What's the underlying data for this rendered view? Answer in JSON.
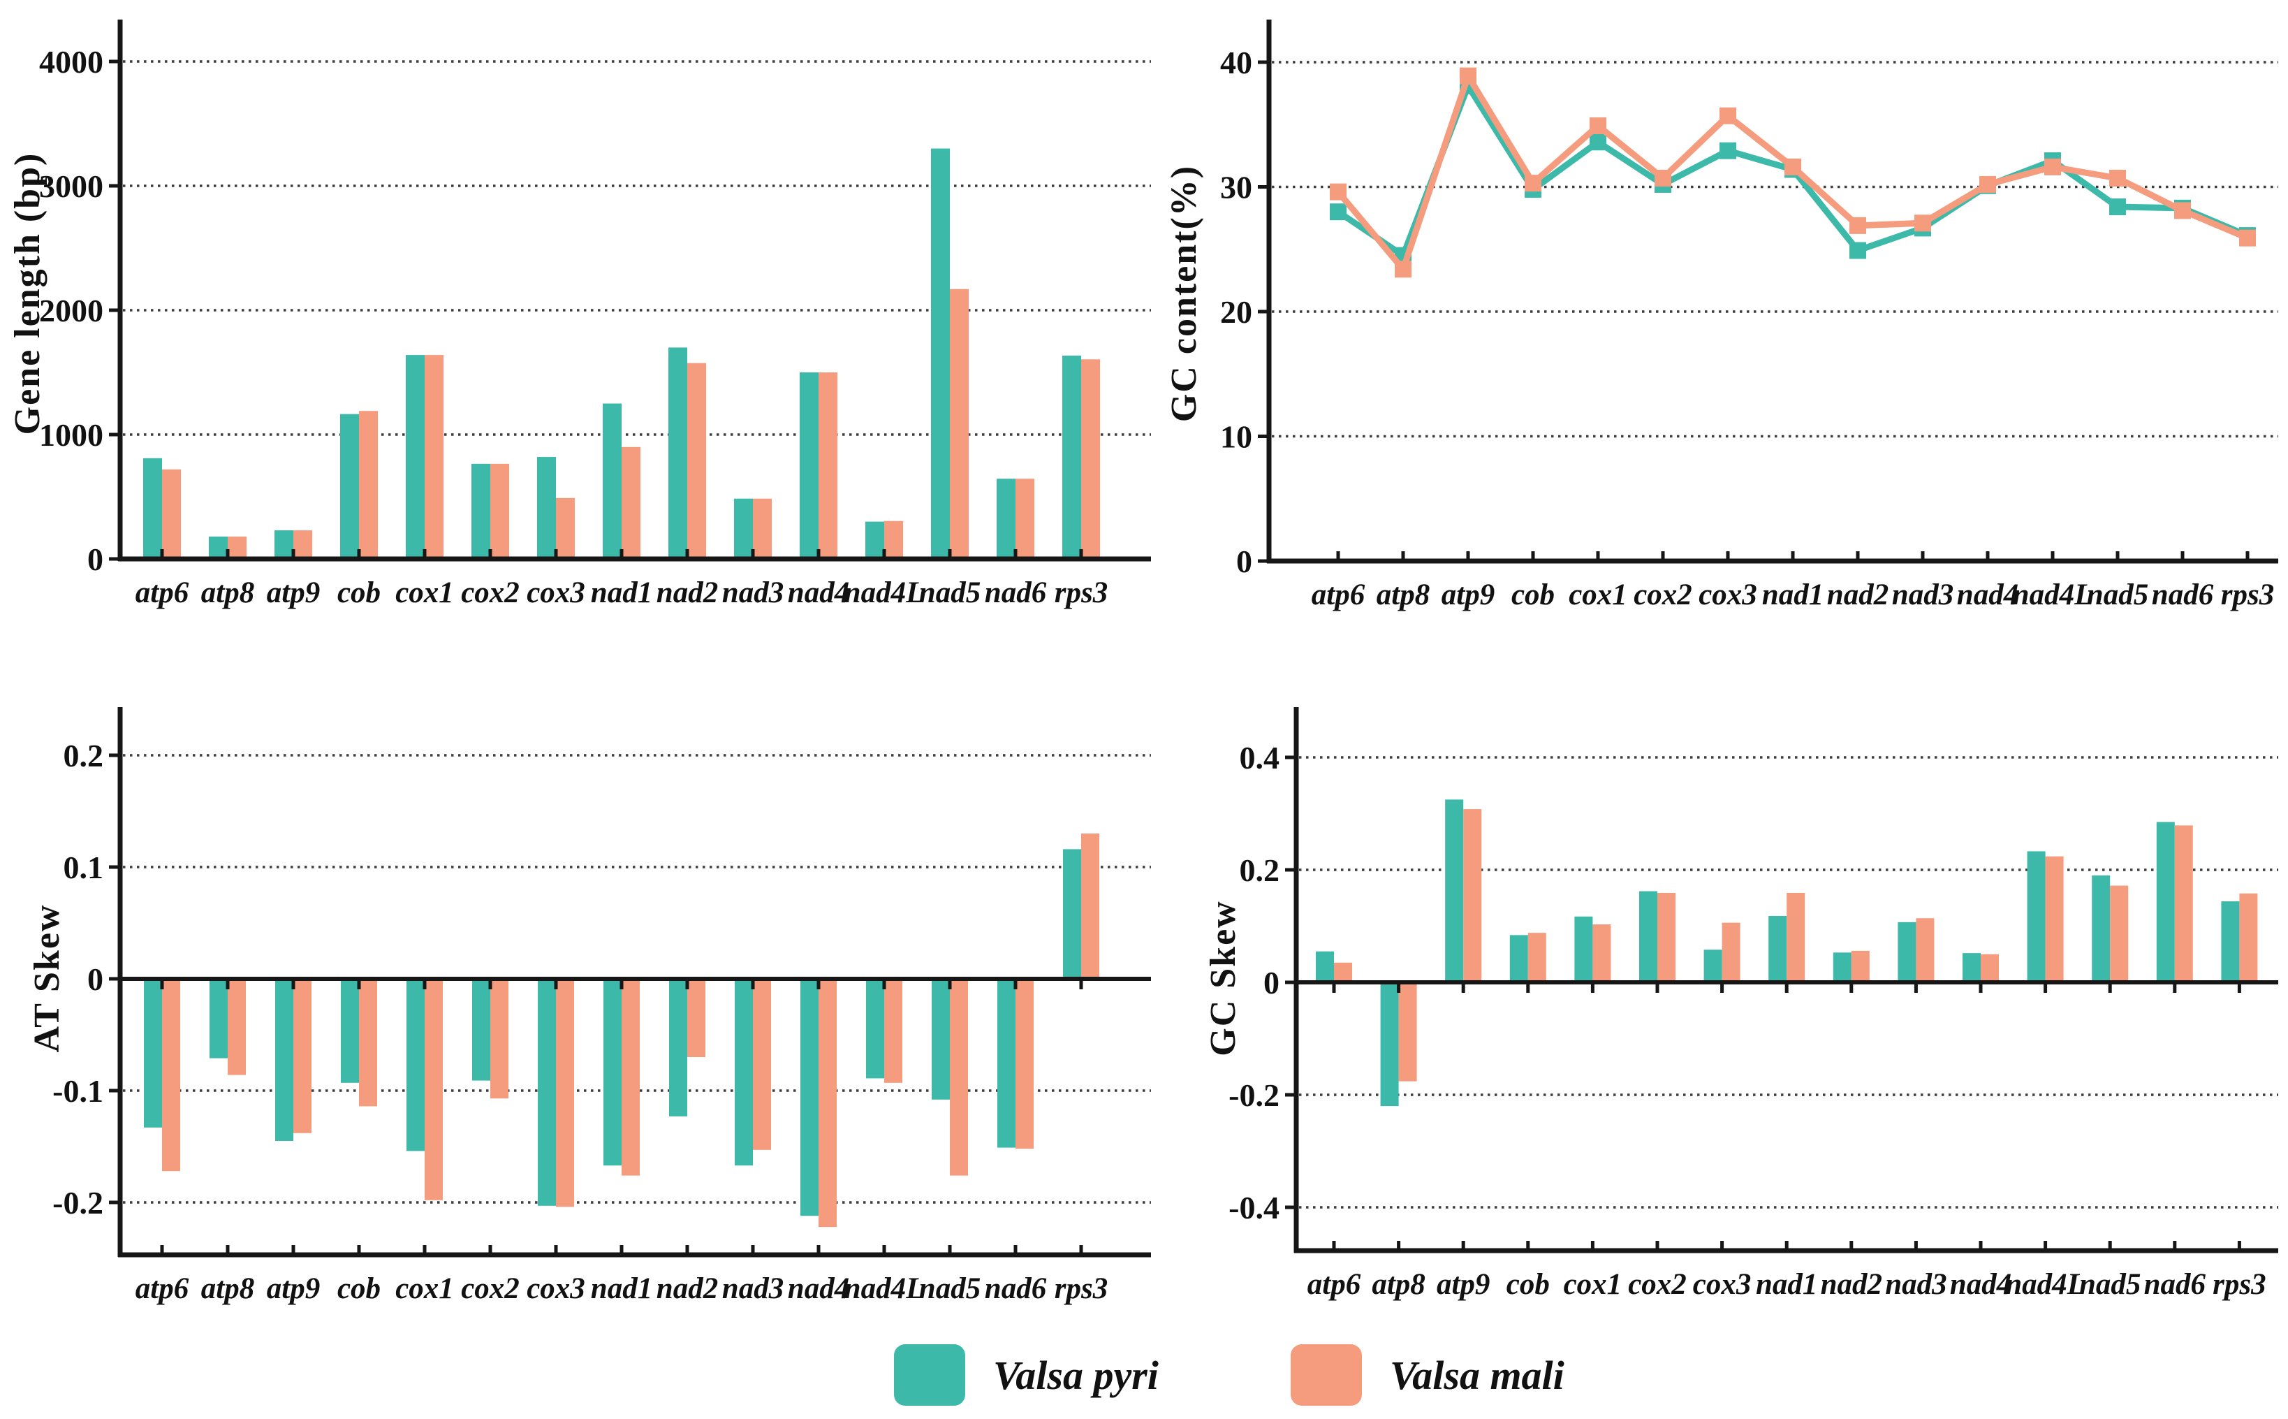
{
  "legend": {
    "items": [
      {
        "label": "Valsa pyri",
        "color": "#3CB9A9"
      },
      {
        "label": "Valsa mali",
        "color": "#F59C7E"
      }
    ]
  },
  "categories": [
    "atp6",
    "atp8",
    "atp9",
    "cob",
    "cox1",
    "cox2",
    "cox3",
    "nad1",
    "nad2",
    "nad3",
    "nad4",
    "nad4L",
    "nad5",
    "nad6",
    "rps3"
  ],
  "chart_data": [
    {
      "id": "gene-length",
      "type": "bar",
      "title": "",
      "ylabel": "Gene length (bp)",
      "xlabel": "",
      "grid": "horizontal-dotted",
      "legend_position": "bottom-center",
      "ylim": [
        0,
        4330
      ],
      "yticks": [
        {
          "label": "4000",
          "value": 4000
        },
        {
          "label": "3000",
          "value": 3000
        },
        {
          "label": "2000",
          "value": 2000
        },
        {
          "label": "1000",
          "value": 1000
        },
        {
          "label": "0",
          "value": 0
        }
      ],
      "categories": [
        "atp6",
        "atp8",
        "atp9",
        "cob",
        "cox1",
        "cox2",
        "cox3",
        "nad1",
        "nad2",
        "nad3",
        "nad4",
        "nad4L",
        "nad5",
        "nad6",
        "rps3"
      ],
      "series": [
        {
          "name": "Valsa pyri",
          "color": "#3CB9A9",
          "values": [
            810,
            180,
            230,
            1165,
            1640,
            765,
            820,
            1250,
            1700,
            485,
            1500,
            300,
            3300,
            645,
            1635
          ]
        },
        {
          "name": "Valsa mali",
          "color": "#F59C7E",
          "values": [
            720,
            180,
            230,
            1190,
            1640,
            765,
            490,
            900,
            1575,
            485,
            1500,
            305,
            2170,
            645,
            1605
          ]
        }
      ]
    },
    {
      "id": "gc-content",
      "type": "line",
      "title": "",
      "ylabel": "GC content(%)",
      "xlabel": "",
      "grid": "horizontal-dotted",
      "legend_position": "bottom-center",
      "ylim": [
        0,
        43.3
      ],
      "yticks": [
        {
          "label": "40",
          "value": 40
        },
        {
          "label": "30",
          "value": 30
        },
        {
          "label": "20",
          "value": 20
        },
        {
          "label": "10",
          "value": 10
        },
        {
          "label": "0",
          "value": 0
        }
      ],
      "categories": [
        "atp6",
        "atp8",
        "atp9",
        "cob",
        "cox1",
        "cox2",
        "cox3",
        "nad1",
        "nad2",
        "nad3",
        "nad4",
        "nad4L",
        "nad5",
        "nad6",
        "rps3"
      ],
      "series": [
        {
          "name": "Valsa pyri",
          "color": "#3CB9A9",
          "values": [
            28.0,
            24.5,
            38.1,
            29.8,
            33.6,
            30.2,
            32.9,
            31.4,
            24.9,
            26.7,
            30.1,
            32.1,
            28.4,
            28.3,
            26.1
          ]
        },
        {
          "name": "Valsa mali",
          "color": "#F59C7E",
          "values": [
            29.6,
            23.4,
            38.9,
            30.3,
            34.9,
            30.7,
            35.7,
            31.6,
            26.9,
            27.1,
            30.2,
            31.6,
            30.7,
            28.1,
            25.9
          ]
        }
      ]
    },
    {
      "id": "at-skew",
      "type": "bar",
      "title": "",
      "ylabel": "AT Skew",
      "xlabel": "",
      "grid": "horizontal-dotted",
      "legend_position": "bottom-center",
      "ylim": [
        -0.245,
        0.245
      ],
      "yticks": [
        {
          "label": "0.2",
          "value": 0.2
        },
        {
          "label": "0.1",
          "value": 0.1
        },
        {
          "label": "0",
          "value": 0
        },
        {
          "label": "-0.1",
          "value": -0.1
        },
        {
          "label": "-0.2",
          "value": -0.2
        }
      ],
      "categories": [
        "atp6",
        "atp8",
        "atp9",
        "cob",
        "cox1",
        "cox2",
        "cox3",
        "nad1",
        "nad2",
        "nad3",
        "nad4",
        "nad4L",
        "nad5",
        "nad6",
        "rps3"
      ],
      "series": [
        {
          "name": "Valsa pyri",
          "color": "#3CB9A9",
          "values": [
            -0.133,
            -0.071,
            -0.145,
            -0.093,
            -0.154,
            -0.091,
            -0.203,
            -0.167,
            -0.123,
            -0.167,
            -0.212,
            -0.089,
            -0.108,
            -0.151,
            0.116
          ]
        },
        {
          "name": "Valsa mali",
          "color": "#F59C7E",
          "values": [
            -0.172,
            -0.086,
            -0.138,
            -0.114,
            -0.198,
            -0.107,
            -0.204,
            -0.176,
            -0.07,
            -0.153,
            -0.222,
            -0.093,
            -0.176,
            -0.152,
            0.13
          ]
        }
      ]
    },
    {
      "id": "gc-skew",
      "type": "bar",
      "title": "",
      "ylabel": "GC Skew",
      "xlabel": "",
      "grid": "horizontal-dotted",
      "legend_position": "bottom-center",
      "ylim": [
        -0.56,
        0.49
      ],
      "yticks": [
        {
          "label": "0.4",
          "value": 0.4
        },
        {
          "label": "0.2",
          "value": 0.2
        },
        {
          "label": "0",
          "value": 0
        },
        {
          "label": "-0.2",
          "value": -0.2
        },
        {
          "label": "-0.4",
          "value": -0.4
        }
      ],
      "categories": [
        "atp6",
        "atp8",
        "atp9",
        "cob",
        "cox1",
        "cox2",
        "cox3",
        "nad1",
        "nad2",
        "nad3",
        "nad4",
        "nad4L",
        "nad5",
        "nad6",
        "rps3"
      ],
      "series": [
        {
          "name": "Valsa pyri",
          "color": "#3CB9A9",
          "values": [
            0.055,
            -0.22,
            0.325,
            0.084,
            0.117,
            0.162,
            0.058,
            0.118,
            0.053,
            0.107,
            0.052,
            0.233,
            0.19,
            0.285,
            0.144
          ]
        },
        {
          "name": "Valsa mali",
          "color": "#F59C7E",
          "values": [
            0.035,
            -0.176,
            0.308,
            0.088,
            0.103,
            0.159,
            0.106,
            0.159,
            0.056,
            0.114,
            0.05,
            0.224,
            0.172,
            0.279,
            0.158
          ]
        }
      ]
    }
  ]
}
